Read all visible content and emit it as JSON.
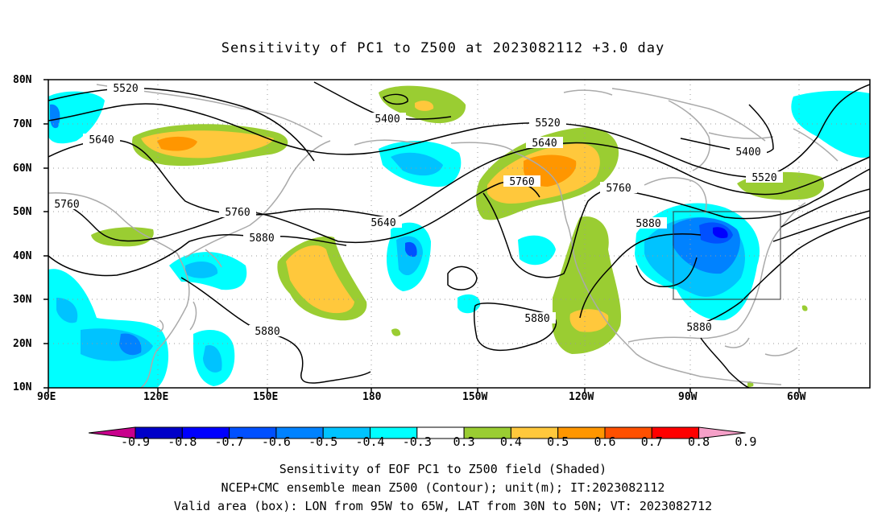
{
  "title": "Sensitivity of PC1 to Z500 at 2023082112 +3.0 day",
  "lat_labels": [
    "80N",
    "70N",
    "60N",
    "50N",
    "40N",
    "30N",
    "20N",
    "10N"
  ],
  "lon_labels": [
    "90E",
    "120E",
    "150E",
    "180",
    "150W",
    "120W",
    "90W",
    "60W"
  ],
  "contour_labels": {
    "c5520a": "5520",
    "c5400a": "5400",
    "c5520b": "5520",
    "c5400b": "5400",
    "c5520c": "5520",
    "c5640a": "5640",
    "c5640b": "5640",
    "c5640c": "5640",
    "c5760a": "5760",
    "c5760b": "5760",
    "c5760c": "5760",
    "c5760d": "5760",
    "c5880a": "5880",
    "c5880b": "5880",
    "c5880c": "5880",
    "c5880d": "5880",
    "c5880e": "5880"
  },
  "colorbar": {
    "labels": [
      "-0.9",
      "-0.8",
      "-0.7",
      "-0.6",
      "-0.5",
      "-0.4",
      "-0.3",
      "0.3",
      "0.4",
      "0.5",
      "0.6",
      "0.7",
      "0.8",
      "0.9"
    ],
    "colors": [
      "#c8008c",
      "#0000c8",
      "#0000ff",
      "#0050ff",
      "#0082ff",
      "#00c3ff",
      "#00ffff",
      "#ffffff",
      "#9acd32",
      "#ffc83c",
      "#ff9600",
      "#ff5000",
      "#ff0000",
      "#f5a0c8"
    ]
  },
  "captions": [
    "Sensitivity of EOF PC1 to Z500 field (Shaded)",
    "NCEP+CMC ensemble mean Z500 (Contour); unit(m); IT:2023082112",
    "Valid area (box): LON from 95W to 65W, LAT from 30N to 50N; VT: 2023082712"
  ]
}
